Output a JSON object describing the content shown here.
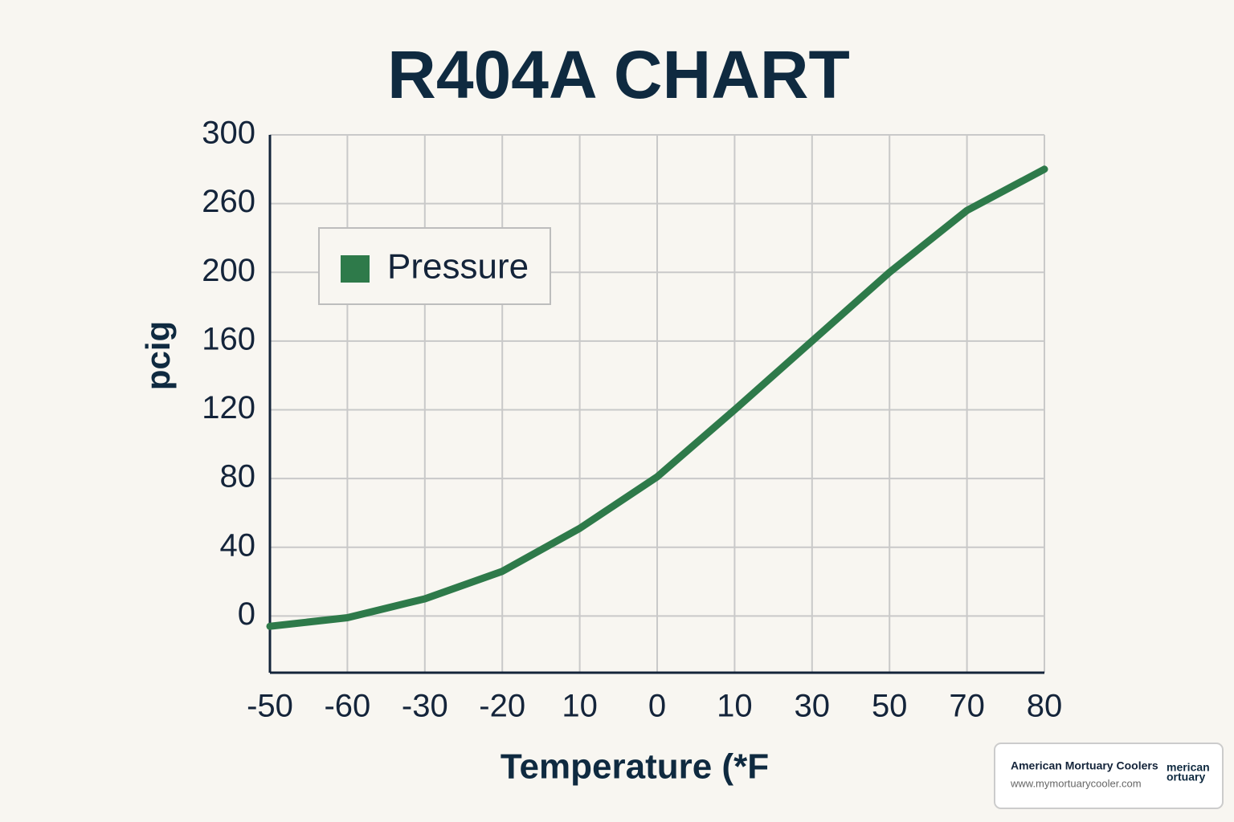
{
  "chart_data": {
    "type": "line",
    "title": "R404A CHART",
    "x_label": "Temperature (*F",
    "y_label": "pcig",
    "categories": [
      "-50",
      "-60",
      "-30",
      "-20",
      "10",
      "0",
      "10",
      "30",
      "50",
      "70",
      "80"
    ],
    "series": [
      {
        "name": "Pressure",
        "color": "#2e7a4a",
        "values": [
          -6,
          -1,
          10,
          26,
          51,
          81,
          120,
          160,
          200,
          254,
          280
        ]
      }
    ],
    "ylim": [
      -33,
      300
    ],
    "yticks": [
      0,
      40,
      80,
      120,
      160,
      200,
      260,
      300
    ],
    "grid": true,
    "legend": "upper left"
  },
  "watermark": {
    "company": "American Mortuary Coolers",
    "url": "www.mymortuarycooler.com",
    "logo_lines": [
      "merican",
      "ortuary"
    ]
  }
}
